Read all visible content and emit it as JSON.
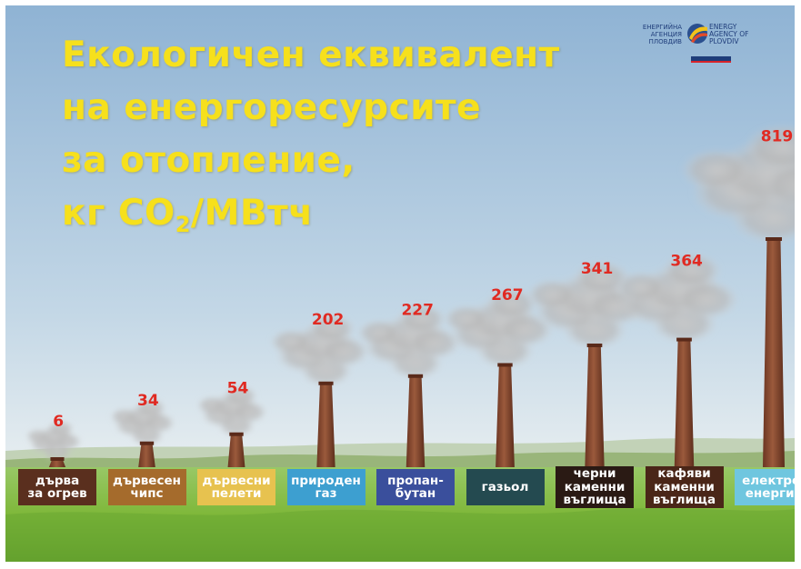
{
  "title": {
    "line1": "Екологичен еквивалент",
    "line2": "на енергоресурсите",
    "line3": "за отопление,",
    "line4_a": "кг СО",
    "line4_sub": "2",
    "line4_b": "/МВтч"
  },
  "logo": {
    "left_lines": [
      "ЕНЕРГИЙНА",
      "АГЕНЦИЯ",
      "ПЛОВДИВ"
    ],
    "right_lines": [
      "ENERGY",
      "AGENCY OF",
      "PLOVDIV"
    ]
  },
  "colors": {
    "title": "#f6e01c",
    "value": "#e02a22",
    "chimney": "#8a4a32",
    "sky_top": "#8fb3d4",
    "grass": "#7fb83a"
  },
  "chart_data": {
    "type": "bar",
    "title": "Екологичен еквивалент на енергоресурсите за отопление, кг СО2/МВтч",
    "xlabel": "",
    "ylabel": "",
    "ylim": [
      0,
      819
    ],
    "grid": false,
    "legend": "none",
    "categories": [
      [
        "дърва",
        "за огрев"
      ],
      [
        "дървесен",
        "чипс"
      ],
      [
        "дървесни",
        "пелети"
      ],
      [
        "природен",
        "газ"
      ],
      [
        "пропан-",
        "бутан"
      ],
      [
        "газьол"
      ],
      [
        "черни",
        "каменни",
        "въглища"
      ],
      [
        "кафяви",
        "каменни",
        "въглища"
      ],
      [
        "електро-",
        "енергия"
      ]
    ],
    "values": [
      6,
      34,
      54,
      202,
      227,
      267,
      341,
      364,
      819
    ],
    "label_colors": [
      {
        "bg": "#5a2f1e",
        "fg": "#ffffff"
      },
      {
        "bg": "#a56b2c",
        "fg": "#ffffff"
      },
      {
        "bg": "#e7c24f",
        "fg": "#ffffff"
      },
      {
        "bg": "#3d9fd0",
        "fg": "#ffffff"
      },
      {
        "bg": "#3a4f9c",
        "fg": "#ffffff"
      },
      {
        "bg": "#244a50",
        "fg": "#ffffff"
      },
      {
        "bg": "#2a1a14",
        "fg": "#ffffff"
      },
      {
        "bg": "#4a2618",
        "fg": "#ffffff"
      },
      {
        "bg": "#6fc6df",
        "fg": "#ffffff"
      }
    ]
  }
}
